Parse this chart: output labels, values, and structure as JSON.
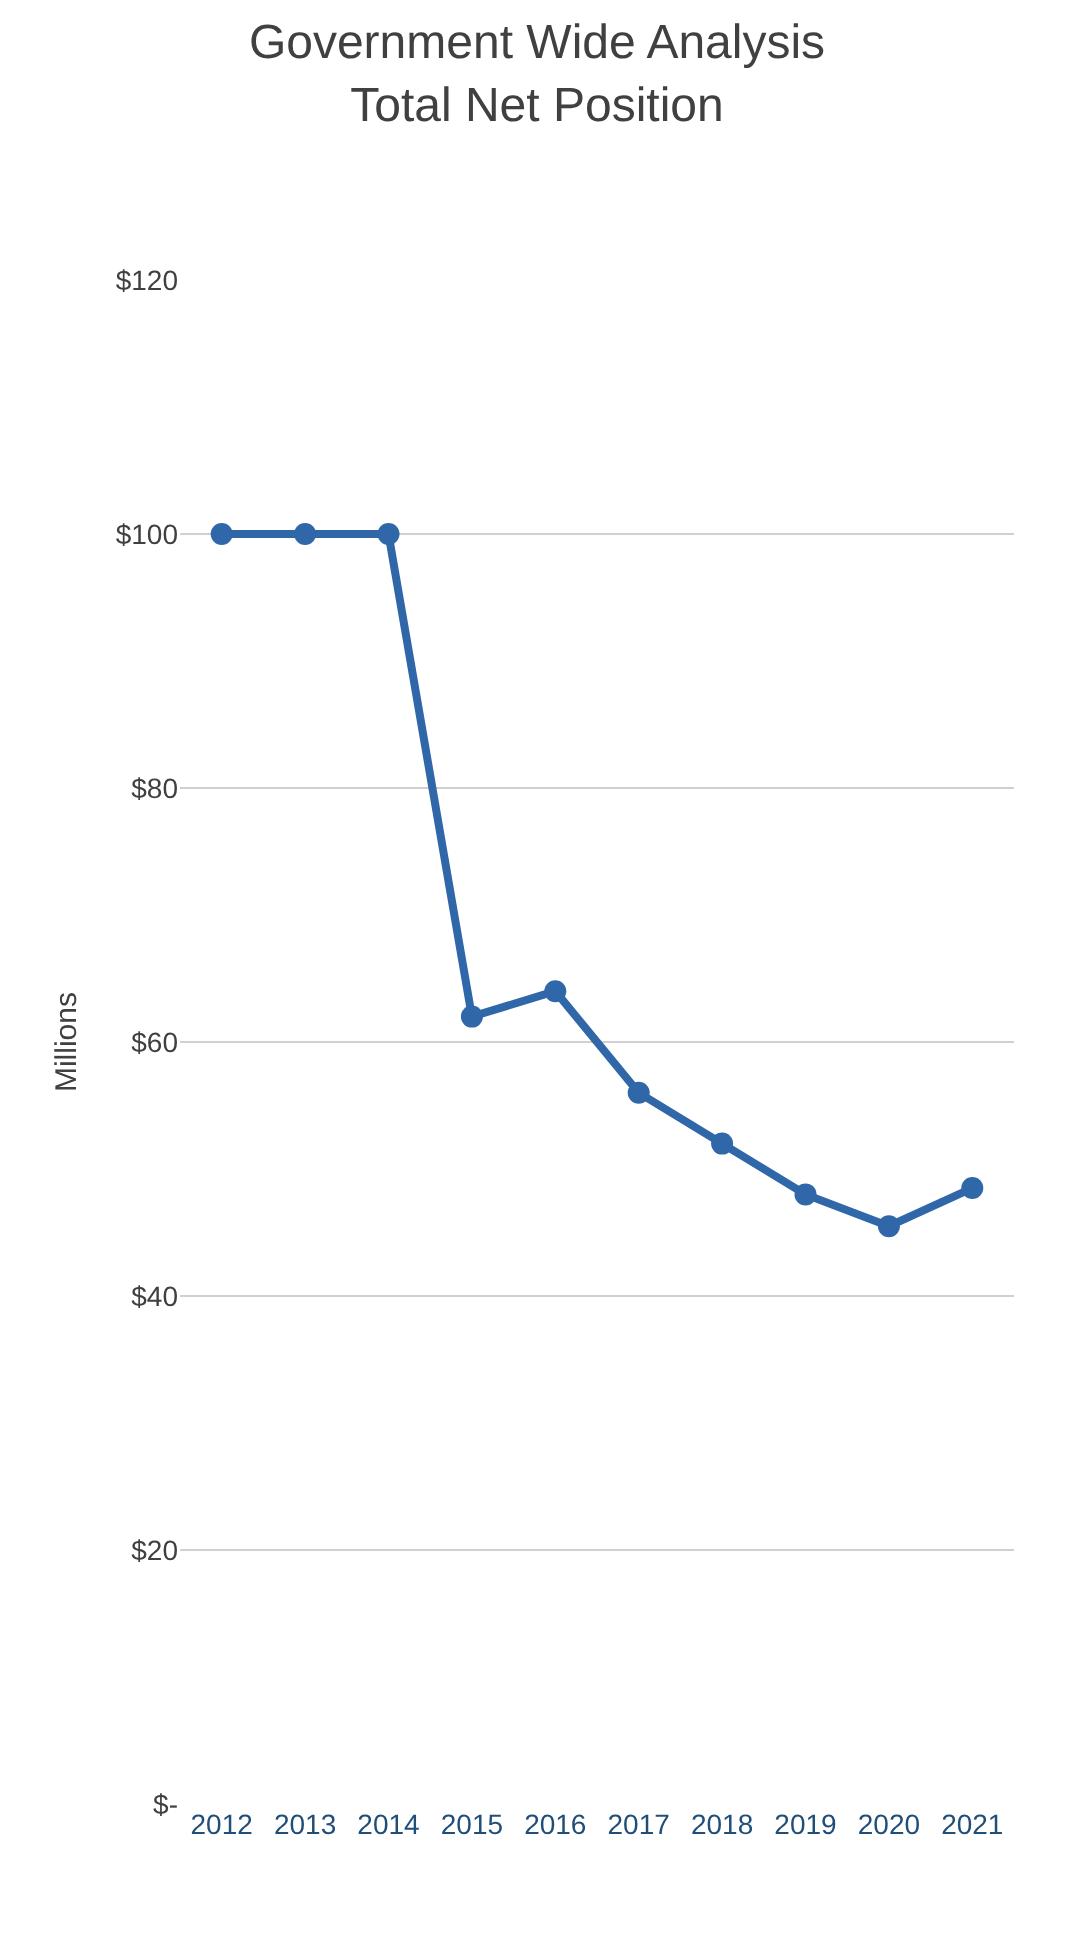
{
  "chart_data": {
    "type": "line",
    "title": "Government Wide Analysis\nTotal Net Position",
    "ylabel": "Millions",
    "categories": [
      "2012",
      "2013",
      "2014",
      "2015",
      "2016",
      "2017",
      "2018",
      "2019",
      "2020",
      "2021"
    ],
    "series": [
      {
        "color": "#2f67a8",
        "values": [
          100,
          100,
          100,
          62,
          64,
          56,
          52,
          48,
          45.5,
          48.5
        ]
      }
    ],
    "ylim": [
      0,
      120
    ],
    "yticks": [
      {
        "value": 0,
        "label": "$-"
      },
      {
        "value": 20,
        "label": "$20"
      },
      {
        "value": 40,
        "label": "$40"
      },
      {
        "value": 60,
        "label": "$60"
      },
      {
        "value": 80,
        "label": "$80"
      },
      {
        "value": 100,
        "label": "$100"
      },
      {
        "value": 120,
        "label": "$120"
      }
    ],
    "grid": "y",
    "marker": "circle",
    "line_style": "solid",
    "legend": false
  }
}
